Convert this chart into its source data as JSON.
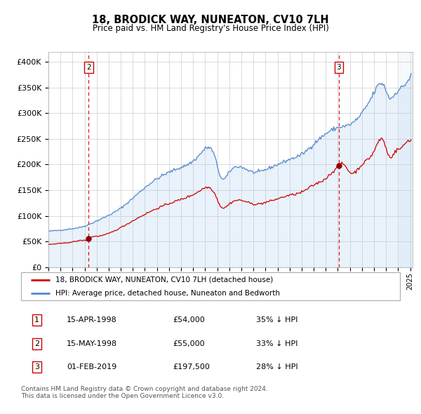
{
  "title": "18, BRODICK WAY, NUNEATON, CV10 7LH",
  "subtitle": "Price paid vs. HM Land Registry's House Price Index (HPI)",
  "property_color": "#cc0000",
  "hpi_color": "#5588cc",
  "hpi_fill_color": "#ddeeff",
  "dashed_line_color": "#cc0000",
  "background_color": "#ffffff",
  "grid_color": "#cccccc",
  "ylim": [
    0,
    420000
  ],
  "yticks": [
    0,
    50000,
    100000,
    150000,
    200000,
    250000,
    300000,
    350000,
    400000
  ],
  "ytick_labels": [
    "£0",
    "£50K",
    "£100K",
    "£150K",
    "£200K",
    "£250K",
    "£300K",
    "£350K",
    "£400K"
  ],
  "legend_entries": [
    "18, BRODICK WAY, NUNEATON, CV10 7LH (detached house)",
    "HPI: Average price, detached house, Nuneaton and Bedworth"
  ],
  "table_rows": [
    [
      "1",
      "15-APR-1998",
      "£54,000",
      "35% ↓ HPI"
    ],
    [
      "2",
      "15-MAY-1998",
      "£55,000",
      "33% ↓ HPI"
    ],
    [
      "3",
      "01-FEB-2019",
      "£197,500",
      "28% ↓ HPI"
    ]
  ],
  "footer": "Contains HM Land Registry data © Crown copyright and database right 2024.\nThis data is licensed under the Open Government Licence v3.0."
}
